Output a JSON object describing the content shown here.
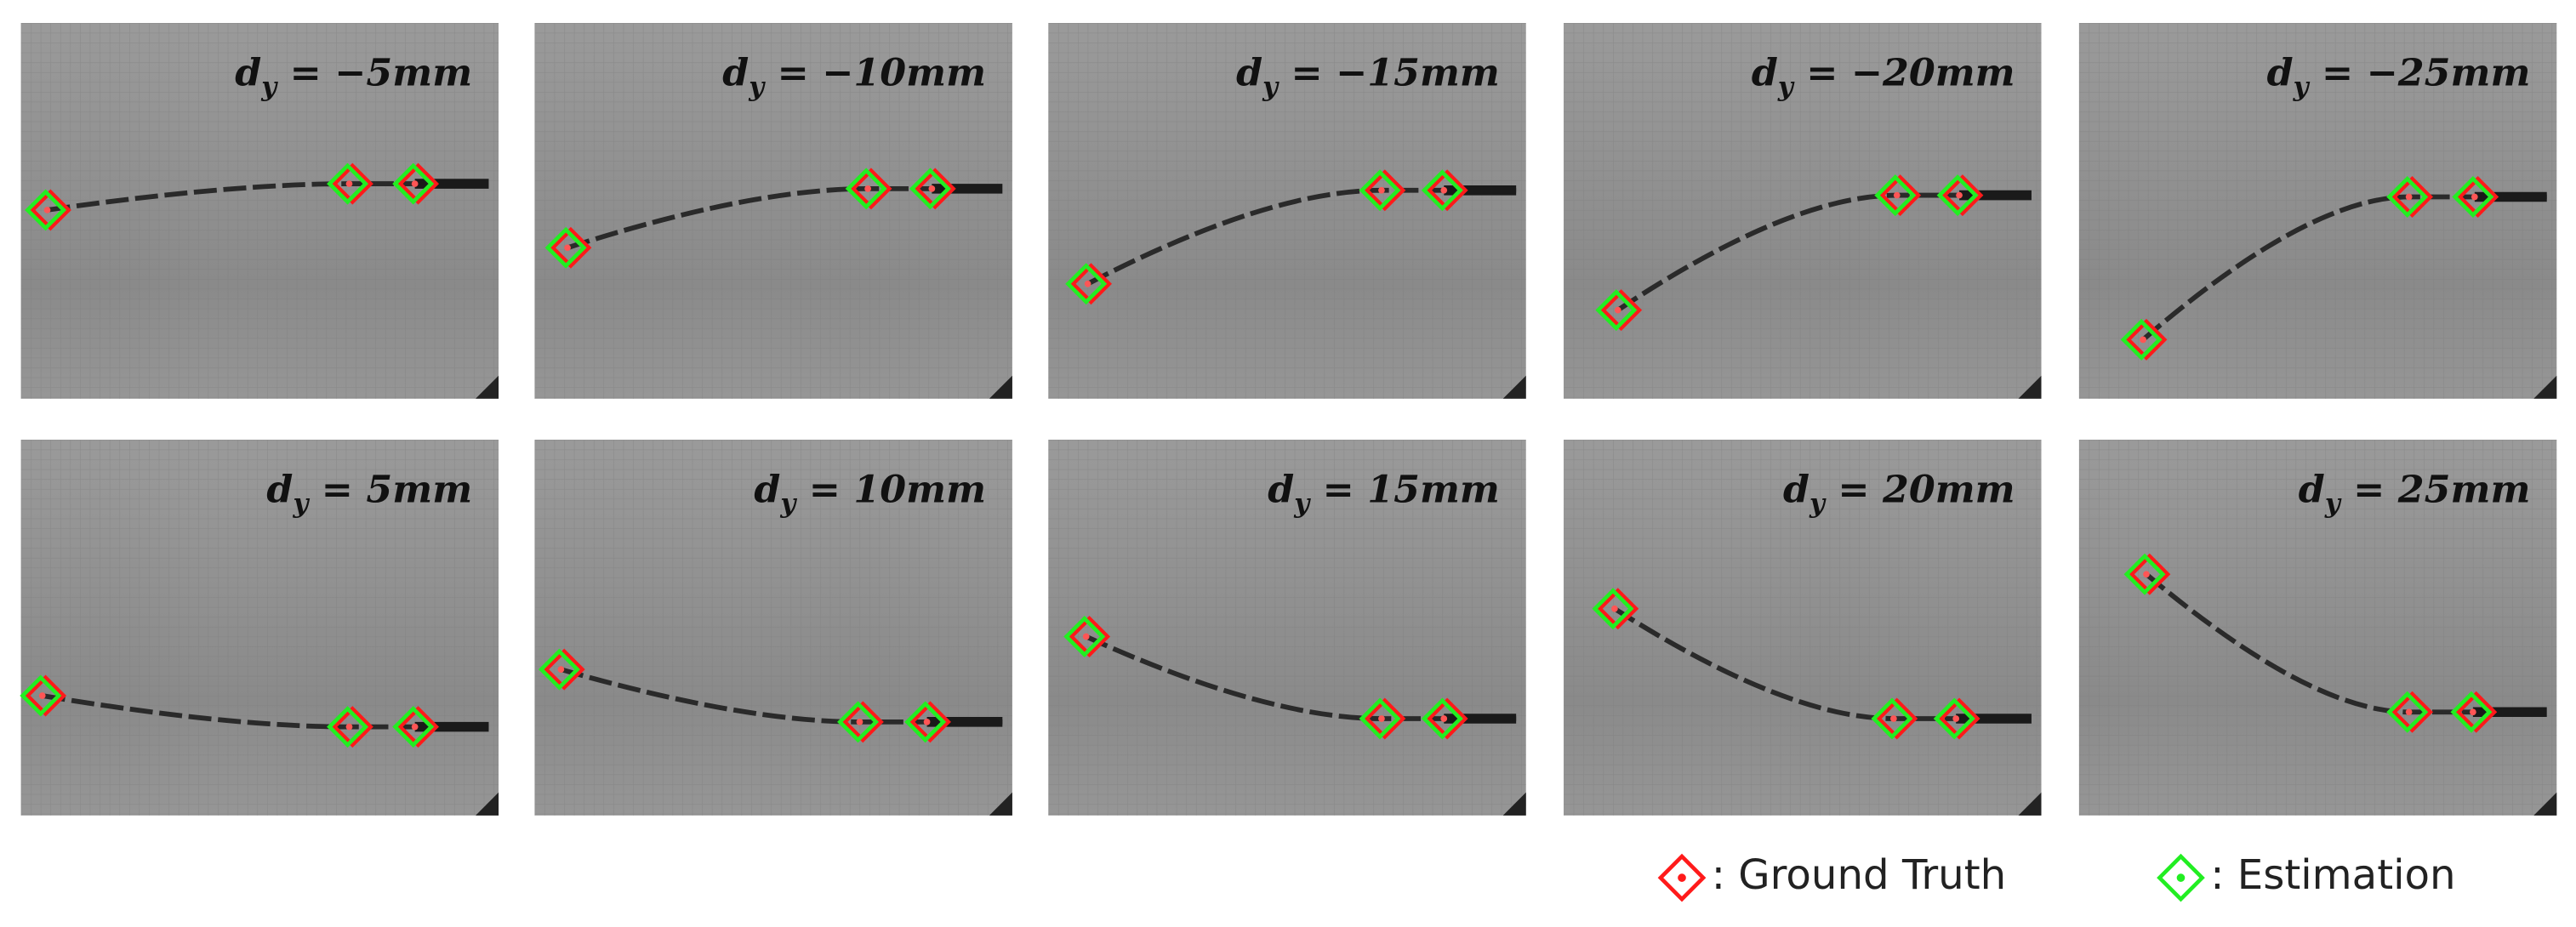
{
  "panels": [
    {
      "symbol": "d",
      "subscript": "y",
      "value": "= −5mm"
    },
    {
      "symbol": "d",
      "subscript": "y",
      "value": "= −10mm"
    },
    {
      "symbol": "d",
      "subscript": "y",
      "value": "= −15mm"
    },
    {
      "symbol": "d",
      "subscript": "y",
      "value": "= −20mm"
    },
    {
      "symbol": "d",
      "subscript": "y",
      "value": "= −25mm"
    },
    {
      "symbol": "d",
      "subscript": "y",
      "value": "= 5mm"
    },
    {
      "symbol": "d",
      "subscript": "y",
      "value": "= 10mm"
    },
    {
      "symbol": "d",
      "subscript": "y",
      "value": "= 15mm"
    },
    {
      "symbol": "d",
      "subscript": "y",
      "value": "= 20mm"
    },
    {
      "symbol": "d",
      "subscript": "y",
      "value": "= 25mm"
    }
  ],
  "legend": [
    {
      "label": ": Ground Truth",
      "color": "#ff1a1a"
    },
    {
      "label": ": Estimation",
      "color": "#22ee22"
    }
  ]
}
